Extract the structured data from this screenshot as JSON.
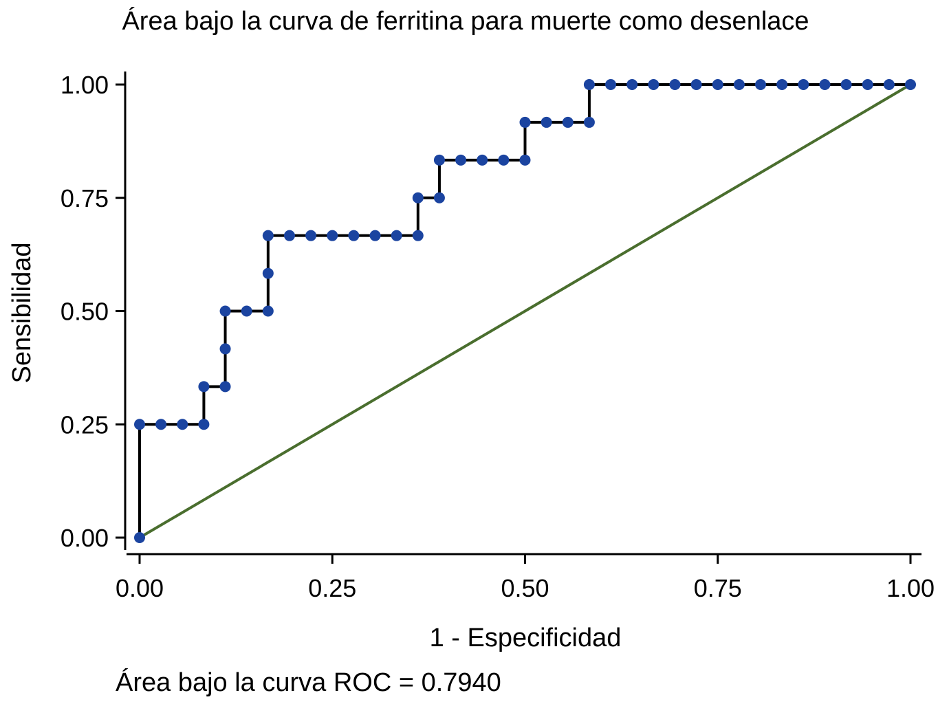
{
  "chart_data": {
    "type": "line",
    "title": "Área bajo la curva de ferritina para muerte como desenlace",
    "xlabel": "1 - Especificidad",
    "ylabel": "Sensibilidad",
    "note": "Área bajo la curva ROC = 0.7940",
    "xlim": [
      0,
      1
    ],
    "ylim": [
      0,
      1
    ],
    "xticks": [
      "0.00",
      "0.25",
      "0.50",
      "0.75",
      "1.00"
    ],
    "yticks": [
      "0.00",
      "0.25",
      "0.50",
      "0.75",
      "1.00"
    ],
    "xtick_values": [
      0,
      0.25,
      0.5,
      0.75,
      1
    ],
    "ytick_values": [
      0,
      0.25,
      0.5,
      0.75,
      1
    ],
    "grid": false,
    "series": [
      {
        "name": "ROC",
        "x_numerators_over_36": [
          0,
          0,
          1,
          2,
          3,
          3,
          4,
          4,
          4,
          5,
          6,
          6,
          6,
          7,
          8,
          9,
          10,
          11,
          12,
          13,
          13,
          14,
          14,
          15,
          16,
          17,
          18,
          18,
          19,
          20,
          21,
          21,
          22,
          23,
          24,
          25,
          26,
          27,
          28,
          29,
          30,
          31,
          32,
          33,
          34,
          35,
          36
        ],
        "y_numerators_over_12": [
          0,
          3,
          3,
          3,
          3,
          4,
          4,
          5,
          6,
          6,
          6,
          7,
          8,
          8,
          8,
          8,
          8,
          8,
          8,
          8,
          9,
          9,
          10,
          10,
          10,
          10,
          10,
          11,
          11,
          11,
          11,
          12,
          12,
          12,
          12,
          12,
          12,
          12,
          12,
          12,
          12,
          12,
          12,
          12,
          12,
          12,
          12
        ]
      },
      {
        "name": "reference",
        "x": [
          0,
          1
        ],
        "y": [
          0,
          1
        ]
      }
    ],
    "colors": {
      "curve": "#000000",
      "points": "#1b44a0",
      "reference": "#4a6e2e"
    }
  }
}
